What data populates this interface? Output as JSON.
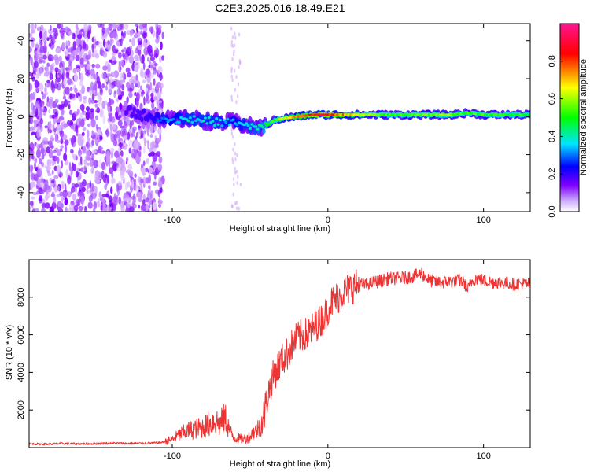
{
  "figure": {
    "title": "C2E3.2025.016.18.49.E21"
  },
  "chart_data": [
    {
      "type": "heatmap",
      "title": "C2E3.2025.016.18.49.E21",
      "xlabel": "Height of straight line (km)",
      "ylabel": "Frequency (Hz)",
      "xlim": [
        -192,
        130
      ],
      "ylim": [
        -50,
        49
      ],
      "x_ticks": [
        -100,
        0,
        100
      ],
      "x_tick_labels": [
        "-100",
        "0",
        "100"
      ],
      "y_ticks": [
        -40,
        -20,
        0,
        20,
        40
      ],
      "y_tick_labels": [
        "-40",
        "-20",
        "0",
        "20",
        "40"
      ],
      "grid": false,
      "colorbar": {
        "label": "Normalized spectral amplitude",
        "range": [
          0,
          1
        ],
        "ticks": [
          0,
          0.2,
          0.4,
          0.6,
          0.8
        ],
        "tick_labels": [
          "0.0",
          "0.2",
          "0.4",
          "0.6",
          "0.8"
        ],
        "colors": [
          "#ffffff",
          "#7f00ff",
          "#0000ff",
          "#00e5ff",
          "#00ff00",
          "#ffff00",
          "#ff0000",
          "#ff1493"
        ]
      },
      "ridge_points": [
        {
          "x": -130,
          "freq": 3,
          "amp": 0.25
        },
        {
          "x": -120,
          "freq": 1,
          "amp": 0.3
        },
        {
          "x": -110,
          "freq": 0,
          "amp": 0.35
        },
        {
          "x": -100,
          "freq": -2,
          "amp": 0.4
        },
        {
          "x": -90,
          "freq": -1,
          "amp": 0.45
        },
        {
          "x": -80,
          "freq": -2,
          "amp": 0.45
        },
        {
          "x": -70,
          "freq": -3,
          "amp": 0.45
        },
        {
          "x": -60,
          "freq": -3,
          "amp": 0.4
        },
        {
          "x": -52,
          "freq": -5,
          "amp": 0.45
        },
        {
          "x": -45,
          "freq": -6,
          "amp": 0.5
        },
        {
          "x": -40,
          "freq": -5,
          "amp": 0.55
        },
        {
          "x": -35,
          "freq": -2,
          "amp": 0.6
        },
        {
          "x": -30,
          "freq": -1,
          "amp": 0.7
        },
        {
          "x": -20,
          "freq": 0,
          "amp": 0.8
        },
        {
          "x": -10,
          "freq": 1,
          "amp": 0.9
        },
        {
          "x": 0,
          "freq": 1,
          "amp": 0.9
        },
        {
          "x": 10,
          "freq": 1,
          "amp": 0.8
        },
        {
          "x": 20,
          "freq": 1,
          "amp": 0.7
        },
        {
          "x": 40,
          "freq": 1,
          "amp": 0.6
        },
        {
          "x": 60,
          "freq": 1,
          "amp": 0.65
        },
        {
          "x": 80,
          "freq": 1,
          "amp": 0.65
        },
        {
          "x": 90,
          "freq": 2,
          "amp": 0.6
        },
        {
          "x": 100,
          "freq": 1,
          "amp": 0.6
        },
        {
          "x": 110,
          "freq": 1,
          "amp": 0.6
        },
        {
          "x": 120,
          "freq": 1,
          "amp": 0.6
        },
        {
          "x": 130,
          "freq": 1,
          "amp": 0.6
        }
      ]
    },
    {
      "type": "line",
      "xlabel": "Height of straight line (km)",
      "ylabel": "SNR (10 * v/v)",
      "xlim": [
        -192,
        130
      ],
      "ylim": [
        0,
        10000
      ],
      "x_ticks": [
        -100,
        0,
        100
      ],
      "x_tick_labels": [
        "-100",
        "0",
        "100"
      ],
      "y_ticks": [
        2000,
        4000,
        6000,
        8000
      ],
      "y_tick_labels": [
        "2000",
        "4000",
        "6000",
        "8000"
      ],
      "grid": false,
      "series": [
        {
          "color": "#ee3333",
          "x": [
            -192,
            -180,
            -170,
            -160,
            -150,
            -140,
            -130,
            -120,
            -110,
            -105,
            -100,
            -95,
            -90,
            -85,
            -80,
            -75,
            -72,
            -70,
            -68,
            -66,
            -64,
            -62,
            -60,
            -58,
            -55,
            -52,
            -50,
            -48,
            -45,
            -42,
            -40,
            -38,
            -36,
            -34,
            -32,
            -30,
            -28,
            -26,
            -24,
            -22,
            -20,
            -18,
            -15,
            -12,
            -10,
            -8,
            -5,
            -2,
            0,
            2,
            5,
            8,
            10,
            12,
            15,
            18,
            20,
            25,
            30,
            35,
            40,
            45,
            50,
            55,
            58,
            60,
            62,
            65,
            70,
            75,
            80,
            85,
            88,
            90,
            92,
            95,
            100,
            105,
            110,
            115,
            120,
            125,
            130
          ],
          "y": [
            200,
            180,
            220,
            200,
            210,
            240,
            220,
            230,
            250,
            300,
            450,
            700,
            900,
            1000,
            1100,
            1300,
            1500,
            1200,
            1400,
            1600,
            1100,
            700,
            500,
            500,
            450,
            500,
            600,
            800,
            1000,
            1400,
            2200,
            3000,
            3600,
            4000,
            4300,
            4600,
            4800,
            5000,
            5300,
            5600,
            5800,
            5900,
            6000,
            6100,
            6300,
            6500,
            6700,
            7000,
            7400,
            7700,
            7900,
            8100,
            8300,
            8400,
            8500,
            8600,
            8650,
            8700,
            8800,
            8900,
            9000,
            9000,
            9050,
            9100,
            9200,
            9300,
            9100,
            8900,
            8800,
            8800,
            8850,
            8900,
            8700,
            8400,
            8800,
            9000,
            8900,
            8800,
            8800,
            8750,
            8700,
            8700,
            8700
          ]
        }
      ]
    }
  ]
}
